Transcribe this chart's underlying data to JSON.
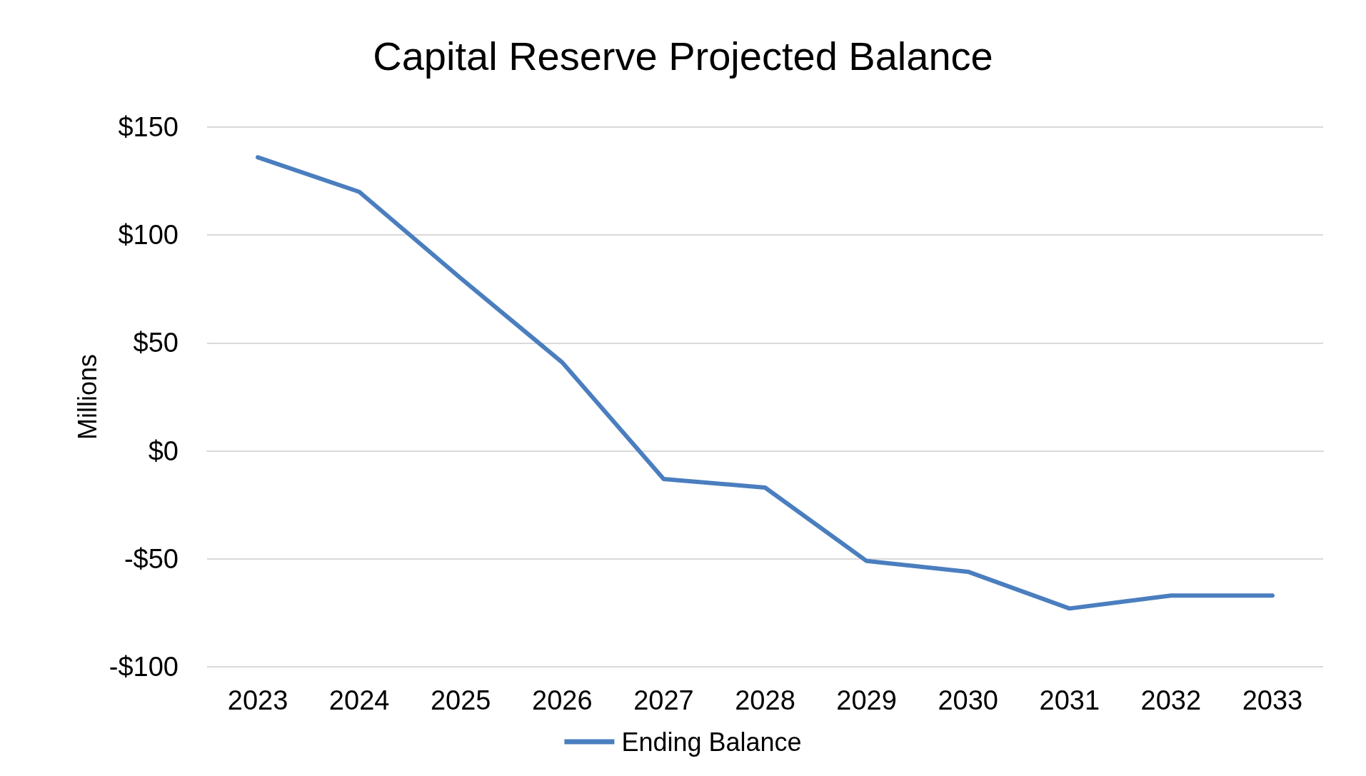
{
  "chart_data": {
    "type": "line",
    "title": "Capital Reserve Projected Balance",
    "ylabel": "Millions",
    "categories": [
      "2023",
      "2024",
      "2025",
      "2026",
      "2027",
      "2028",
      "2029",
      "2030",
      "2031",
      "2032",
      "2033"
    ],
    "series": [
      {
        "name": "Ending Balance",
        "color": "#4a7ebf",
        "values": [
          136,
          120,
          80,
          41,
          -13,
          -17,
          -51,
          -56,
          -73,
          -67,
          -67
        ]
      }
    ],
    "ylim": [
      -100,
      150
    ],
    "yticks": [
      {
        "value": -100,
        "label": "-$100"
      },
      {
        "value": -50,
        "label": "-$50"
      },
      {
        "value": 0,
        "label": "$0"
      },
      {
        "value": 50,
        "label": "$50"
      },
      {
        "value": 100,
        "label": "$100"
      },
      {
        "value": 150,
        "label": "$150"
      }
    ],
    "grid": "y",
    "legend": "bottom",
    "marker": "none",
    "line_style": "solid"
  }
}
